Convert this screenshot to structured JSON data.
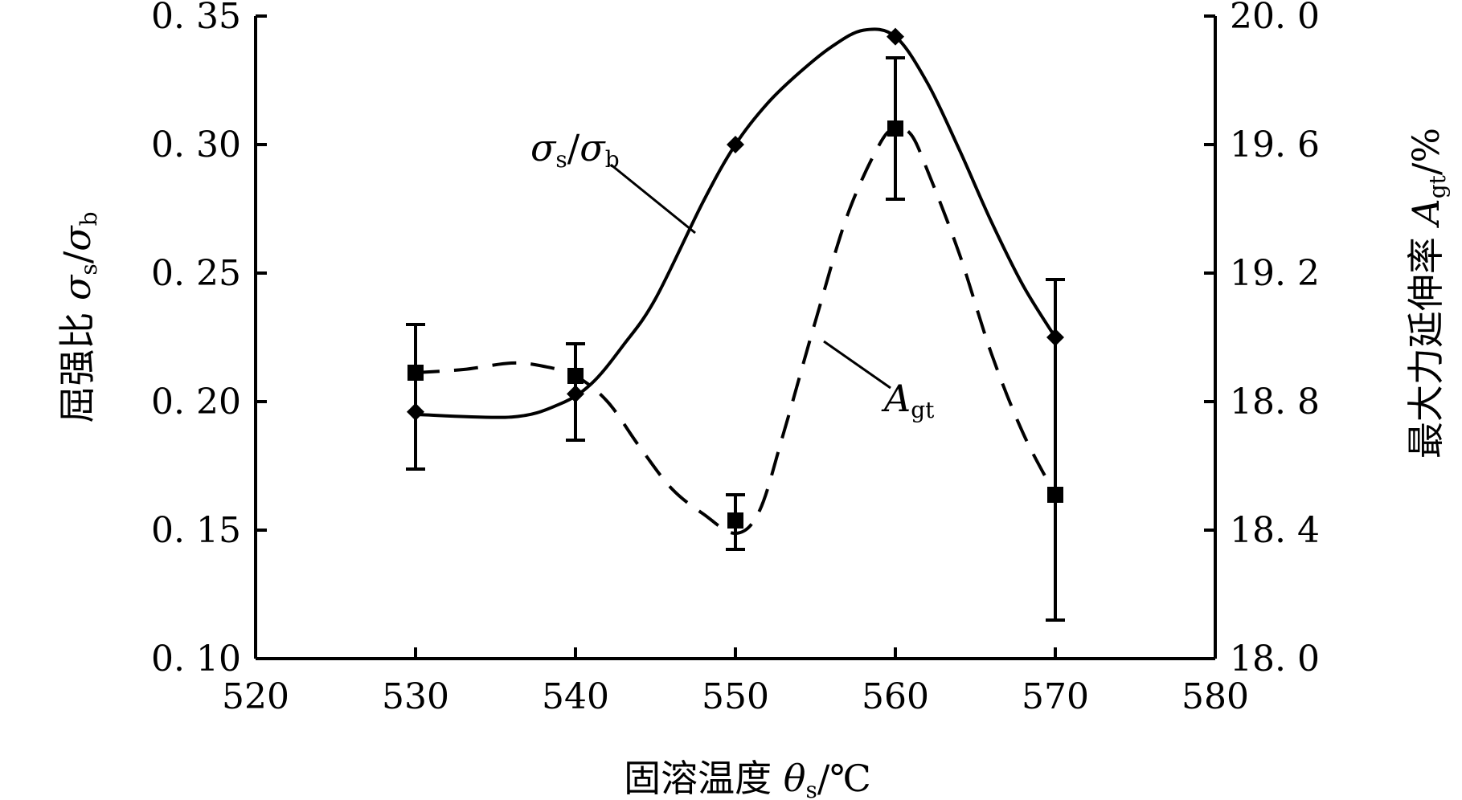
{
  "chart_data": {
    "type": "line",
    "x": [
      530,
      540,
      550,
      560,
      570
    ],
    "xlim": [
      520,
      580
    ],
    "x_ticks": [
      "520",
      "530",
      "540",
      "550",
      "560",
      "570",
      "580"
    ],
    "xlabel": {
      "text": "固溶温度 ",
      "symbol": "θ",
      "sub": "s",
      "unit": "/℃"
    },
    "y_left": {
      "lim": [
        0.1,
        0.35
      ],
      "ticks": [
        "0. 10",
        "0. 15",
        "0. 20",
        "0. 25",
        "0. 30",
        "0. 35"
      ],
      "label": {
        "text": "屈强比 ",
        "sym1": "σ",
        "sub1": "s",
        "slash": "/",
        "sym2": "σ",
        "sub2": "b"
      }
    },
    "y_right": {
      "lim": [
        18.0,
        20.0
      ],
      "ticks": [
        "18. 0",
        "18. 4",
        "18. 8",
        "19. 2",
        "19. 6",
        "20. 0"
      ],
      "label": {
        "text": "最大力延伸率 ",
        "sym": "A",
        "sub": "gt",
        "unit": "/%"
      }
    },
    "series": [
      {
        "name": "σs/σb",
        "axis": "left",
        "marker": "diamond",
        "line": "solid",
        "x": [
          530,
          540,
          550,
          560,
          570
        ],
        "y": [
          0.196,
          0.203,
          0.3,
          0.342,
          0.225
        ],
        "smooth_path": [
          [
            530,
            0.195
          ],
          [
            536,
            0.194
          ],
          [
            539,
            0.199
          ],
          [
            541,
            0.207
          ],
          [
            543,
            0.222
          ],
          [
            545,
            0.24
          ],
          [
            548,
            0.278
          ],
          [
            550,
            0.3
          ],
          [
            552,
            0.316
          ],
          [
            554,
            0.328
          ],
          [
            556,
            0.338
          ],
          [
            558,
            0.3445
          ],
          [
            560,
            0.342
          ],
          [
            562,
            0.324
          ],
          [
            564,
            0.298
          ],
          [
            566,
            0.27
          ],
          [
            568,
            0.245
          ],
          [
            570,
            0.225
          ]
        ],
        "error": null,
        "annotation": {
          "sym1": "σ",
          "sub1": "s",
          "slash": "/",
          "sym2": "σ",
          "sub2": "b"
        }
      },
      {
        "name": "Agt",
        "axis": "right",
        "marker": "square",
        "line": "dashed",
        "x": [
          530,
          540,
          550,
          560,
          570
        ],
        "y": [
          18.89,
          18.88,
          18.43,
          19.65,
          18.51
        ],
        "error_low": [
          18.59,
          18.68,
          18.34,
          19.43,
          18.12
        ],
        "error_high": [
          19.04,
          18.98,
          18.51,
          19.87,
          19.18
        ],
        "smooth_path": [
          [
            530,
            18.89
          ],
          [
            533,
            18.9
          ],
          [
            536,
            18.92
          ],
          [
            538,
            18.91
          ],
          [
            540,
            18.88
          ],
          [
            542,
            18.8
          ],
          [
            544,
            18.66
          ],
          [
            546,
            18.53
          ],
          [
            548,
            18.45
          ],
          [
            550,
            18.39
          ],
          [
            551.5,
            18.46
          ],
          [
            553,
            18.7
          ],
          [
            555,
            19.05
          ],
          [
            557,
            19.38
          ],
          [
            559,
            19.6
          ],
          [
            560,
            19.65
          ],
          [
            561,
            19.63
          ],
          [
            562,
            19.52
          ],
          [
            564,
            19.26
          ],
          [
            566,
            18.95
          ],
          [
            568,
            18.7
          ],
          [
            570,
            18.51
          ]
        ],
        "annotation": {
          "sym": "A",
          "sub": "gt"
        }
      }
    ]
  }
}
